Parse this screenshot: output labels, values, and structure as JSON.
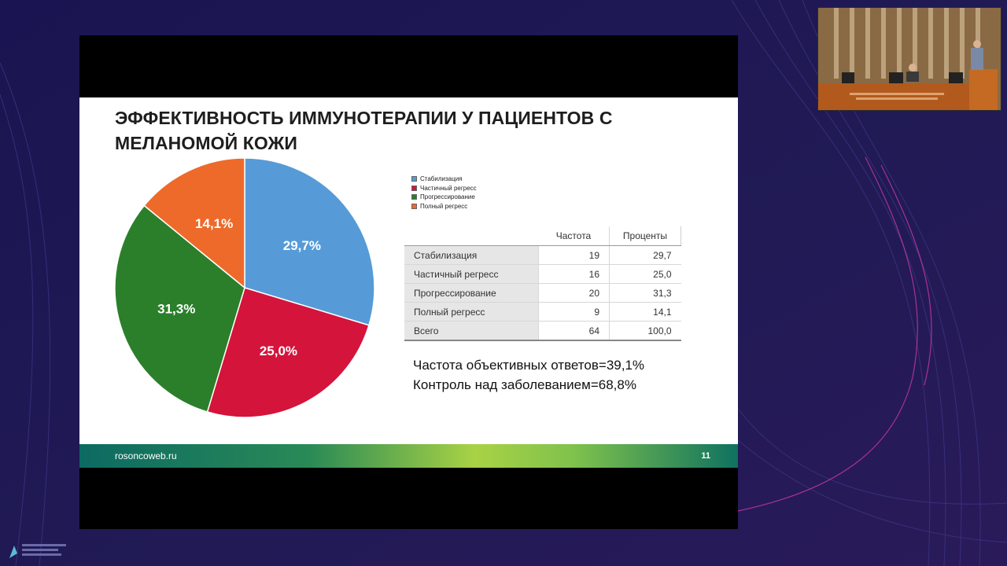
{
  "slide": {
    "title": "ЭФФЕКТИВНОСТЬ ИММУНОТЕРАПИИ У ПАЦИЕНТОВ С МЕЛАНОМОЙ КОЖИ",
    "footer_site": "rosoncoweb.ru",
    "page_number": "11",
    "summary": [
      "Частота объективных ответов=39,1%",
      "Контроль над заболеванием=68,8%"
    ]
  },
  "chart_data": {
    "type": "pie",
    "slices": [
      {
        "label": "Стабилизация",
        "value": 29.7,
        "text": "29,7%",
        "color": "#569bd7"
      },
      {
        "label": "Частичный регресс",
        "value": 25.0,
        "text": "25,0%",
        "color": "#d4143b"
      },
      {
        "label": "Прогрессирование",
        "value": 31.3,
        "text": "31,3%",
        "color": "#2b7f2b"
      },
      {
        "label": "Полный регресс",
        "value": 14.1,
        "text": "14,1%",
        "color": "#ee6a2a"
      }
    ],
    "legend": [
      "Стабилизация",
      "Частичный регресс",
      "Прогрессирование",
      "Полный регресс"
    ],
    "legend_placement": "top-right"
  },
  "table": {
    "headers": [
      "",
      "Частота",
      "Проценты"
    ],
    "rows": [
      {
        "label": "Стабилизация",
        "freq": "19",
        "pct": "29,7"
      },
      {
        "label": "Частичный регресс",
        "freq": "16",
        "pct": "25,0"
      },
      {
        "label": "Прогрессирование",
        "freq": "20",
        "pct": "31,3"
      },
      {
        "label": "Полный регресс",
        "freq": "9",
        "pct": "14,1"
      },
      {
        "label": "Всего",
        "freq": "64",
        "pct": "100,0"
      }
    ]
  },
  "colors": {
    "background": "#1d1650",
    "accent_line": "#d63aa8",
    "footer_start": "#0c6a62",
    "footer_mid": "#a9d245"
  },
  "icons": [
    "conference-room-camera-feed",
    "organizer-logo"
  ]
}
